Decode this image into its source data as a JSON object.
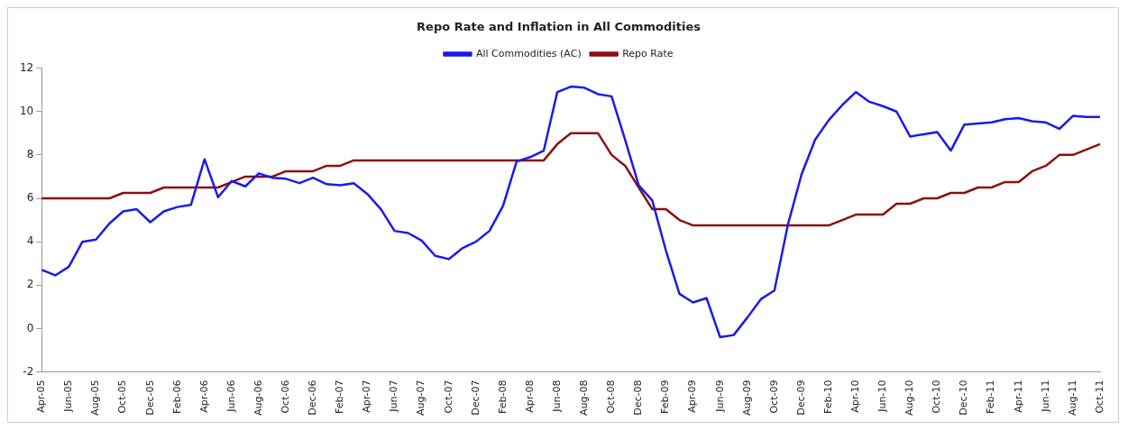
{
  "chart_data": {
    "type": "line",
    "title": "Repo Rate and Inflation in All Commodities",
    "categories": [
      "Apr-05",
      null,
      "Jun-05",
      null,
      "Aug-05",
      null,
      "Oct-05",
      null,
      "Dec-05",
      null,
      "Feb-06",
      null,
      "Apr-06",
      null,
      "Jun-06",
      null,
      "Aug-06",
      null,
      "Oct-06",
      null,
      "Dec-06",
      null,
      "Feb-07",
      null,
      "Apr-07",
      null,
      "Jun-07",
      null,
      "Aug-07",
      null,
      "Oct-07",
      null,
      "Dec-07",
      null,
      "Feb-08",
      null,
      "Apr-08",
      null,
      "Jun-08",
      null,
      "Aug-08",
      null,
      "Oct-08",
      null,
      "Dec-08",
      null,
      "Feb-09",
      null,
      "Apr-09",
      null,
      "Jun-09",
      null,
      "Aug-09",
      null,
      "Oct-09",
      null,
      "Dec-09",
      null,
      "Feb-10",
      null,
      "Apr-10",
      null,
      "Jun-10",
      null,
      "Aug-10",
      null,
      "Oct-10",
      null,
      "Dec-10",
      null,
      "Feb-11",
      null,
      "Apr-11",
      null,
      "Jun-11",
      null,
      "Aug-11",
      null,
      "Oct-11"
    ],
    "series": [
      {
        "name": "All Commodities (AC)",
        "color": "#1a1aeb",
        "values": [
          2.7,
          2.45,
          2.85,
          4.0,
          4.1,
          4.85,
          5.4,
          5.5,
          4.9,
          5.4,
          5.6,
          5.7,
          7.8,
          6.05,
          6.8,
          6.55,
          7.15,
          6.95,
          6.9,
          6.7,
          6.95,
          6.65,
          6.6,
          6.7,
          6.2,
          5.5,
          4.5,
          4.4,
          4.05,
          3.35,
          3.2,
          3.7,
          4.0,
          4.5,
          5.65,
          7.7,
          7.9,
          8.2,
          10.9,
          11.15,
          11.1,
          10.8,
          10.7,
          8.7,
          6.6,
          5.9,
          3.6,
          1.6,
          1.2,
          1.4,
          -0.4,
          -0.3,
          0.5,
          1.35,
          1.75,
          4.8,
          7.1,
          8.7,
          9.6,
          10.3,
          10.9,
          10.45,
          10.25,
          10.0,
          8.85,
          8.95,
          9.05,
          8.2,
          9.4,
          9.45,
          9.5,
          9.65,
          9.7,
          9.55,
          9.5,
          9.2,
          9.8,
          9.75,
          9.75
        ]
      },
      {
        "name": "Repo Rate",
        "color": "#8b1010",
        "values": [
          6.0,
          6.0,
          6.0,
          6.0,
          6.0,
          6.0,
          6.25,
          6.25,
          6.25,
          6.5,
          6.5,
          6.5,
          6.5,
          6.5,
          6.75,
          7.0,
          7.0,
          7.0,
          7.25,
          7.25,
          7.25,
          7.5,
          7.5,
          7.75,
          7.75,
          7.75,
          7.75,
          7.75,
          7.75,
          7.75,
          7.75,
          7.75,
          7.75,
          7.75,
          7.75,
          7.75,
          7.75,
          7.75,
          8.5,
          9.0,
          9.0,
          9.0,
          8.0,
          7.5,
          6.5,
          5.5,
          5.5,
          5.0,
          4.75,
          4.75,
          4.75,
          4.75,
          4.75,
          4.75,
          4.75,
          4.75,
          4.75,
          4.75,
          4.75,
          5.0,
          5.25,
          5.25,
          5.25,
          5.75,
          5.75,
          6.0,
          6.0,
          6.25,
          6.25,
          6.5,
          6.5,
          6.75,
          6.75,
          7.25,
          7.5,
          8.0,
          8.0,
          8.25,
          8.5
        ]
      }
    ],
    "ylim": [
      -2,
      12
    ],
    "yticks": [
      -2,
      0,
      2,
      4,
      6,
      8,
      10,
      12
    ],
    "grid": false,
    "legend": "top",
    "marker": "none",
    "line_style": "solid"
  }
}
